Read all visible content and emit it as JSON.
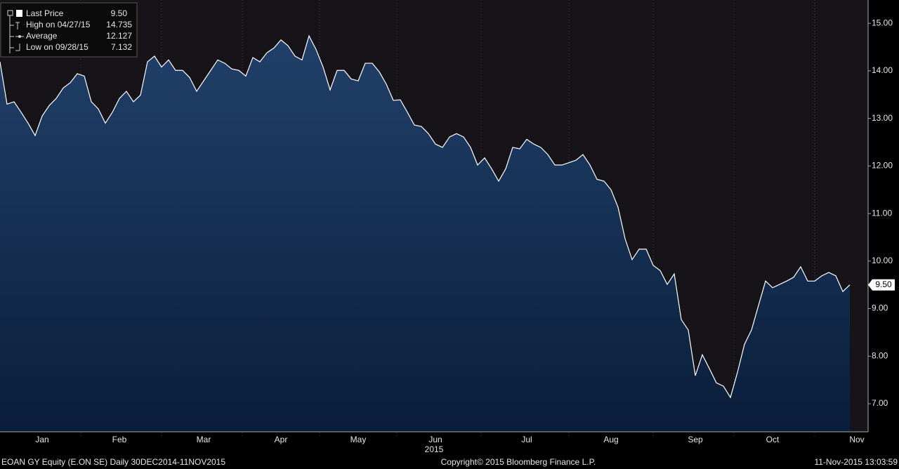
{
  "chart_data": {
    "type": "area",
    "title": "EOAN GY Equity (E.ON SE)  Daily 30DEC2014-11NOV2015",
    "copyright": "Copyright© 2015 Bloomberg Finance L.P.",
    "timestamp": "11-Nov-2015 13:03:59",
    "x_label": "2015",
    "color": "#ffffff",
    "categories": [
      null,
      null,
      null,
      null,
      null,
      null,
      "Jan",
      null,
      null,
      null,
      null,
      null,
      null,
      null,
      null,
      null,
      null,
      "Feb",
      null,
      null,
      null,
      null,
      null,
      null,
      null,
      null,
      null,
      null,
      null,
      "Mar",
      null,
      null,
      null,
      null,
      null,
      null,
      null,
      null,
      null,
      null,
      "Apr",
      null,
      null,
      null,
      null,
      null,
      null,
      null,
      null,
      null,
      null,
      "May",
      null,
      null,
      null,
      null,
      null,
      null,
      null,
      null,
      null,
      null,
      "Jun",
      null,
      null,
      null,
      null,
      null,
      null,
      null,
      null,
      null,
      null,
      null,
      null,
      "Jul",
      null,
      null,
      null,
      null,
      null,
      null,
      null,
      null,
      null,
      null,
      null,
      "Aug",
      null,
      null,
      null,
      null,
      null,
      null,
      null,
      null,
      null,
      null,
      null,
      "Sep",
      null,
      null,
      null,
      null,
      null,
      null,
      null,
      null,
      null,
      null,
      "Oct",
      null,
      null,
      null,
      null,
      null,
      null,
      null,
      null,
      null,
      null,
      null,
      "Nov",
      null
    ],
    "values": [
      14.19,
      13.3,
      13.35,
      13.13,
      12.9,
      12.64,
      13.05,
      13.27,
      13.42,
      13.64,
      13.75,
      13.94,
      13.89,
      13.35,
      13.2,
      12.9,
      13.13,
      13.42,
      13.57,
      13.35,
      13.49,
      14.19,
      14.31,
      14.08,
      14.23,
      14.01,
      14.01,
      13.86,
      13.57,
      13.79,
      14.01,
      14.23,
      14.16,
      14.04,
      14.01,
      13.89,
      14.28,
      14.19,
      14.38,
      14.48,
      14.65,
      14.53,
      14.31,
      14.23,
      14.735,
      14.45,
      14.08,
      13.6,
      14.01,
      14.01,
      13.83,
      13.79,
      14.16,
      14.16,
      13.98,
      13.72,
      13.38,
      13.39,
      13.13,
      12.86,
      12.83,
      12.68,
      12.46,
      12.39,
      12.61,
      12.68,
      12.61,
      12.39,
      12.02,
      12.17,
      11.94,
      11.68,
      11.94,
      12.39,
      12.36,
      12.56,
      12.46,
      12.39,
      12.24,
      12.02,
      12.02,
      12.07,
      12.12,
      12.24,
      12.02,
      11.72,
      11.68,
      11.5,
      11.13,
      10.47,
      10.03,
      10.25,
      10.25,
      9.91,
      9.8,
      9.51,
      9.73,
      8.77,
      8.55,
      7.59,
      8.03,
      7.74,
      7.44,
      7.37,
      7.132,
      7.66,
      8.25,
      8.55,
      9.07,
      9.58,
      9.44,
      9.51,
      9.58,
      9.66,
      9.88,
      9.58,
      9.58,
      9.69,
      9.76,
      9.69,
      9.36,
      9.5,
      null,
      null
    ],
    "ylim": [
      6.41,
      15.49
    ],
    "yticks": [
      {
        "value": 7,
        "label": "7.00"
      },
      {
        "value": 8,
        "label": "8.00"
      },
      {
        "value": 9,
        "label": "9.00"
      },
      {
        "value": 10,
        "label": "10.00"
      },
      {
        "value": 11,
        "label": "11.00"
      },
      {
        "value": 12,
        "label": "12.00"
      },
      {
        "value": 13,
        "label": "13.00"
      },
      {
        "value": 14,
        "label": "14.00"
      },
      {
        "value": 15,
        "label": "15.00"
      }
    ],
    "stats": [
      {
        "name": "Last Price",
        "value": 9.5,
        "value_label": "9.50"
      },
      {
        "name": "High on 04/27/15",
        "value": 14.735
      },
      {
        "name": "Average",
        "value": 12.127
      },
      {
        "name": "Low on 09/28/15",
        "value": 7.132
      }
    ]
  }
}
